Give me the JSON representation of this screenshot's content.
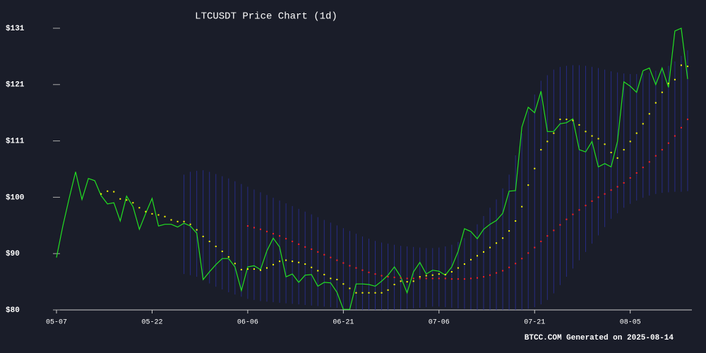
{
  "chart_data": {
    "type": "line",
    "title": "LTCUSDT Price Chart (1d)",
    "footer": "BTCC.COM Generated on 2025-08-14",
    "x": [
      "05-07",
      "05-08",
      "05-09",
      "05-10",
      "05-11",
      "05-12",
      "05-13",
      "05-14",
      "05-15",
      "05-16",
      "05-17",
      "05-18",
      "05-19",
      "05-20",
      "05-21",
      "05-22",
      "05-23",
      "05-24",
      "05-25",
      "05-26",
      "05-27",
      "05-28",
      "05-29",
      "05-30",
      "05-31",
      "06-01",
      "06-02",
      "06-03",
      "06-04",
      "06-05",
      "06-06",
      "06-07",
      "06-08",
      "06-09",
      "06-10",
      "06-11",
      "06-12",
      "06-13",
      "06-14",
      "06-15",
      "06-16",
      "06-17",
      "06-18",
      "06-19",
      "06-20",
      "06-21",
      "06-22",
      "06-23",
      "06-24",
      "06-25",
      "06-26",
      "06-27",
      "06-28",
      "06-29",
      "06-30",
      "07-01",
      "07-02",
      "07-03",
      "07-04",
      "07-05",
      "07-06",
      "07-07",
      "07-08",
      "07-09",
      "07-10",
      "07-11",
      "07-12",
      "07-13",
      "07-14",
      "07-15",
      "07-16",
      "07-17",
      "07-18",
      "07-19",
      "07-20",
      "07-21",
      "07-22",
      "07-23",
      "07-24",
      "07-25",
      "07-26",
      "07-27",
      "07-28",
      "07-29",
      "07-30",
      "07-31",
      "08-01",
      "08-02",
      "08-03",
      "08-04",
      "08-05",
      "08-06",
      "08-07",
      "08-08",
      "08-09",
      "08-10",
      "08-11",
      "08-12",
      "08-13",
      "08-14"
    ],
    "xticks": [
      "05-07",
      "05-22",
      "06-06",
      "06-21",
      "07-06",
      "07-21",
      "08-05"
    ],
    "ylim": [
      80,
      131
    ],
    "yticks": [
      {
        "value": 80,
        "label": "$80"
      },
      {
        "value": 90.2,
        "label": "$90"
      },
      {
        "value": 100.4,
        "label": "$100"
      },
      {
        "value": 110.6,
        "label": "$111"
      },
      {
        "value": 120.8,
        "label": "$121"
      },
      {
        "value": 131,
        "label": "$131"
      }
    ],
    "band": {
      "color": "#2a2f9a",
      "upper": [
        null,
        null,
        null,
        null,
        null,
        null,
        null,
        null,
        null,
        null,
        null,
        null,
        null,
        null,
        null,
        null,
        null,
        null,
        null,
        null,
        104.5,
        105,
        105.2,
        105.3,
        105,
        104.6,
        104.2,
        103.8,
        103.3,
        102.8,
        102.3,
        101.8,
        101.3,
        100.8,
        100.3,
        99.8,
        99.3,
        98.8,
        98.3,
        97.8,
        97.3,
        96.8,
        96.3,
        95.8,
        95.3,
        94.8,
        94.3,
        93.8,
        93.3,
        92.9,
        92.5,
        92.2,
        92,
        91.8,
        91.6,
        91.5,
        91.4,
        91.3,
        91.2,
        91.2,
        91.3,
        91.5,
        91.8,
        92.3,
        93,
        94,
        95.5,
        97,
        98.5,
        100,
        102,
        104.5,
        108,
        112,
        116,
        119,
        121.5,
        122.5,
        123.5,
        124,
        124.2,
        124.3,
        124.3,
        124.2,
        124,
        123.8,
        123.5,
        123.2,
        123,
        122.8,
        122.7,
        122.7,
        122.8,
        123,
        123.3,
        123.7,
        124.2,
        125,
        126,
        127
      ],
      "lower": [
        null,
        null,
        null,
        null,
        null,
        null,
        null,
        null,
        null,
        null,
        null,
        null,
        null,
        null,
        null,
        null,
        null,
        null,
        null,
        null,
        86.5,
        86.3,
        86,
        85.5,
        84.8,
        84.2,
        83.7,
        83.2,
        82.8,
        82.4,
        82,
        81.8,
        81.6,
        81.5,
        81.4,
        81.3,
        81.2,
        81.1,
        81,
        80.9,
        80.8,
        80.7,
        80.6,
        80.5,
        80.4,
        80.3,
        80.2,
        80.1,
        80,
        80,
        80,
        80,
        80,
        80,
        80.1,
        80.2,
        80.3,
        80.4,
        80.5,
        80.6,
        80.6,
        80.5,
        80.4,
        80.3,
        80.2,
        80.1,
        80,
        80,
        80,
        80,
        80,
        80,
        80,
        80,
        80.2,
        80.5,
        81,
        81.8,
        83,
        84.5,
        86,
        87.5,
        89,
        90.5,
        92,
        93.5,
        95,
        96.5,
        97.5,
        98.5,
        99.2,
        99.8,
        100.3,
        100.7,
        101,
        101.2,
        101.3,
        101.4,
        101.4,
        101.5
      ]
    },
    "series": [
      {
        "style": "line",
        "color": "#22e022",
        "values": [
          89.5,
          95.2,
          100.3,
          105,
          100,
          103.8,
          103.4,
          100.7,
          99.2,
          99.4,
          96.1,
          100.6,
          98.7,
          94.6,
          97.5,
          100.2,
          95.2,
          95.5,
          95.5,
          95,
          95.7,
          95.2,
          93.9,
          85.5,
          86.9,
          88.2,
          89.3,
          89.3,
          87.8,
          83.5,
          87.8,
          88,
          87.3,
          90.7,
          93,
          91.4,
          86,
          86.5,
          85,
          86.3,
          86.4,
          84.3,
          85,
          84.9,
          83.2,
          80.1,
          80.1,
          84.7,
          84.7,
          84.6,
          84.3,
          85.2,
          86.3,
          87.8,
          86,
          83.1,
          86.9,
          88.6,
          86.5,
          87.2,
          87,
          86.3,
          87.8,
          90.6,
          94.7,
          94.2,
          92.9,
          94.6,
          95.5,
          96.2,
          97.5,
          101.5,
          101.6,
          113.1,
          116.7,
          115.7,
          119.6,
          112.3,
          112.3,
          113.7,
          113.9,
          114.6,
          109,
          108.6,
          110.5,
          105.9,
          106.5,
          105.9,
          110.5,
          121.3,
          120.5,
          119.4,
          123.3,
          123.8,
          120.8,
          123.8,
          120.3,
          130.5,
          131,
          121.8
        ]
      },
      {
        "style": "dots",
        "color": "#ffff00",
        "values": [
          null,
          null,
          null,
          null,
          null,
          null,
          null,
          101,
          101.5,
          101.4,
          100.1,
          99.9,
          99.4,
          98.5,
          97.8,
          97.4,
          97.2,
          96.9,
          96.3,
          96,
          96,
          95.5,
          94.5,
          93.3,
          92.4,
          91.5,
          90.6,
          89.6,
          88.4,
          87.3,
          87.4,
          87.4,
          87.2,
          87.6,
          88.2,
          88.8,
          89,
          88.8,
          88.6,
          88.3,
          87.7,
          87.1,
          86.4,
          85.7,
          85.5,
          84.7,
          83.9,
          83.1,
          83.1,
          83.1,
          83.1,
          83.1,
          83.6,
          84.6,
          85.2,
          85.1,
          85.2,
          86,
          86.2,
          86.3,
          86.5,
          86.4,
          86.9,
          87.6,
          88.3,
          89.1,
          89.8,
          90.5,
          91.3,
          92.1,
          93,
          94.3,
          96.1,
          98.7,
          102.6,
          105.6,
          109,
          110.5,
          112,
          114.5,
          114.5,
          114.3,
          113.5,
          112.3,
          111.5,
          111,
          110,
          108.5,
          107.5,
          109,
          110.5,
          112,
          113.7,
          115.5,
          117.5,
          119.4,
          121,
          121.7,
          124.3,
          124.1
        ]
      },
      {
        "style": "dots",
        "color": "#ff2020",
        "values": [
          null,
          null,
          null,
          null,
          null,
          null,
          null,
          null,
          null,
          null,
          null,
          null,
          null,
          null,
          null,
          null,
          null,
          null,
          null,
          null,
          null,
          null,
          null,
          null,
          null,
          null,
          null,
          null,
          null,
          null,
          95.2,
          94.9,
          94.6,
          94.2,
          93.8,
          93.4,
          92.9,
          92.4,
          91.9,
          91.4,
          91,
          90.5,
          90,
          89.5,
          89,
          88.5,
          88,
          87.6,
          87.2,
          86.8,
          86.5,
          86.2,
          86,
          85.9,
          85.8,
          85.7,
          85.7,
          85.7,
          85.7,
          85.7,
          85.7,
          85.7,
          85.6,
          85.6,
          85.6,
          85.7,
          85.8,
          86,
          86.3,
          86.7,
          87.1,
          87.7,
          88.4,
          89.3,
          90.3,
          91.3,
          92.4,
          93.4,
          94.4,
          95.4,
          96.4,
          97.3,
          98.1,
          98.9,
          99.7,
          100.4,
          101,
          101.7,
          102.3,
          103,
          103.9,
          104.8,
          105.8,
          106.8,
          107.9,
          109,
          110.2,
          111.5,
          113,
          114.5
        ]
      }
    ]
  }
}
